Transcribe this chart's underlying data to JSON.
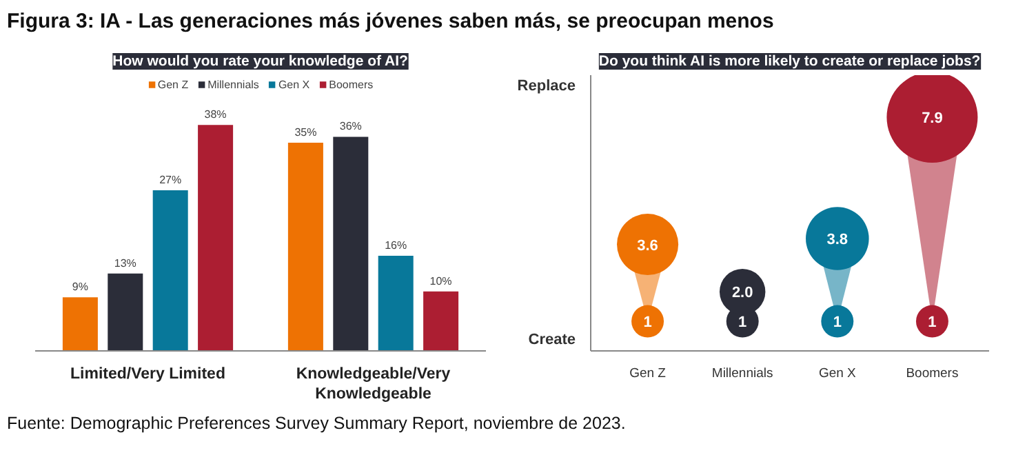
{
  "chart_data": [
    {
      "type": "bar",
      "title": "Figura 3: IA - Las generaciones más jóvenes saben más, se preocupan menos",
      "subtitle": "How would you rate your knowledge of AI?",
      "categories": [
        "Limited/Very Limited",
        "Knowledgeable/Very Knowledgeable"
      ],
      "tick_labels": "x",
      "legend": "top",
      "grid": false,
      "series": [
        {
          "name": "Gen Z",
          "color": "#ee7203",
          "values": [
            9,
            35
          ],
          "value_labels": [
            "9%",
            "35%"
          ]
        },
        {
          "name": "Millennials",
          "color": "#2b2d39",
          "values": [
            13,
            36
          ],
          "value_labels": [
            "13%",
            "36%"
          ]
        },
        {
          "name": "Gen X",
          "color": "#08789a",
          "values": [
            27,
            16
          ],
          "value_labels": [
            "27%",
            "16%"
          ]
        },
        {
          "name": "Boomers",
          "color": "#ac1e32",
          "values": [
            38,
            10
          ],
          "value_labels": [
            "38%",
            "10%"
          ]
        }
      ],
      "annotations": [
        "Fuente: Demographic Preferences Survey Summary Report, noviembre de 2023."
      ]
    },
    {
      "type": "other",
      "title": "Do you think AI is more likely to create or replace jobs?",
      "categories": [
        "Gen Z",
        "Millennials",
        "Gen X",
        "Boomers"
      ],
      "annotations": [
        "Create",
        "Replace"
      ],
      "series": [
        {
          "colors": [
            "#ee7203",
            "#2b2d39",
            "#08789a",
            "#ac1e32"
          ],
          "values": [
            1,
            1,
            1,
            1
          ],
          "value_labels": [
            "1",
            "1",
            "1",
            "1"
          ]
        },
        {
          "colors": [
            "#ee7203",
            "#2b2d39",
            "#08789a",
            "#ac1e32"
          ],
          "values": [
            3.6,
            2.0,
            3.8,
            7.9
          ],
          "value_labels": [
            "3.6",
            "2.0",
            "3.8",
            "7.9"
          ]
        }
      ]
    }
  ]
}
